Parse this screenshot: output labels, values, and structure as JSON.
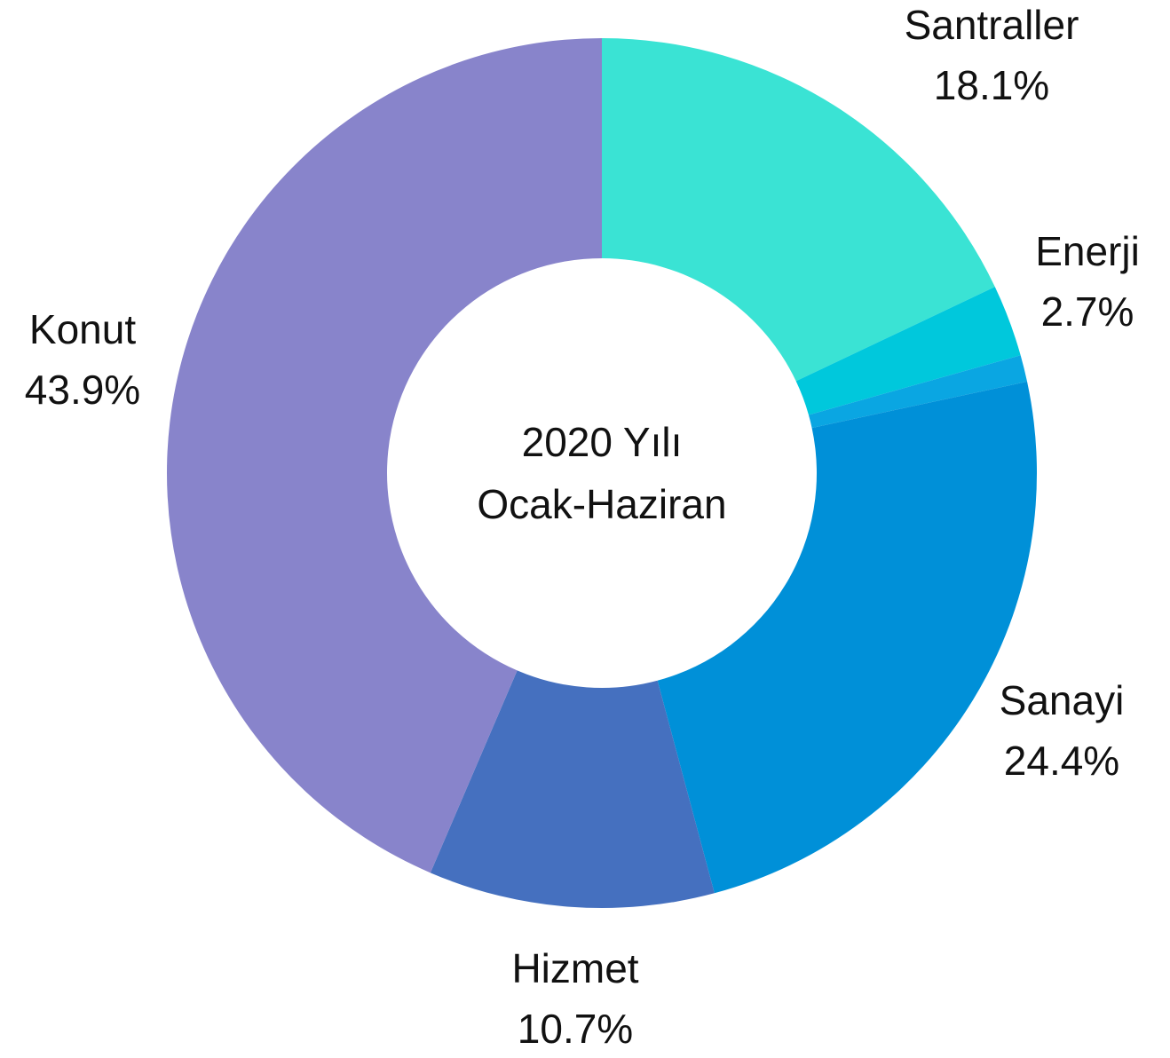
{
  "chart_data": {
    "type": "pie",
    "categories": [
      "Santraller",
      "Enerji",
      null,
      "Sanayi",
      "Hizmet",
      "Konut"
    ],
    "values": [
      18.1,
      2.7,
      1,
      24.4,
      10.7,
      43.9
    ],
    "value_labels": [
      "18.1%",
      "2.7%",
      null,
      "24.4%",
      "10.7%",
      "43.9%"
    ],
    "colors": [
      "#3ae3d4",
      "#00c8dc",
      "#0aa6e2",
      "#0090d8",
      "#4570bf",
      "#8884cb"
    ],
    "center_text": [
      "2020 Yılı",
      "Ocak-Haziran"
    ]
  }
}
